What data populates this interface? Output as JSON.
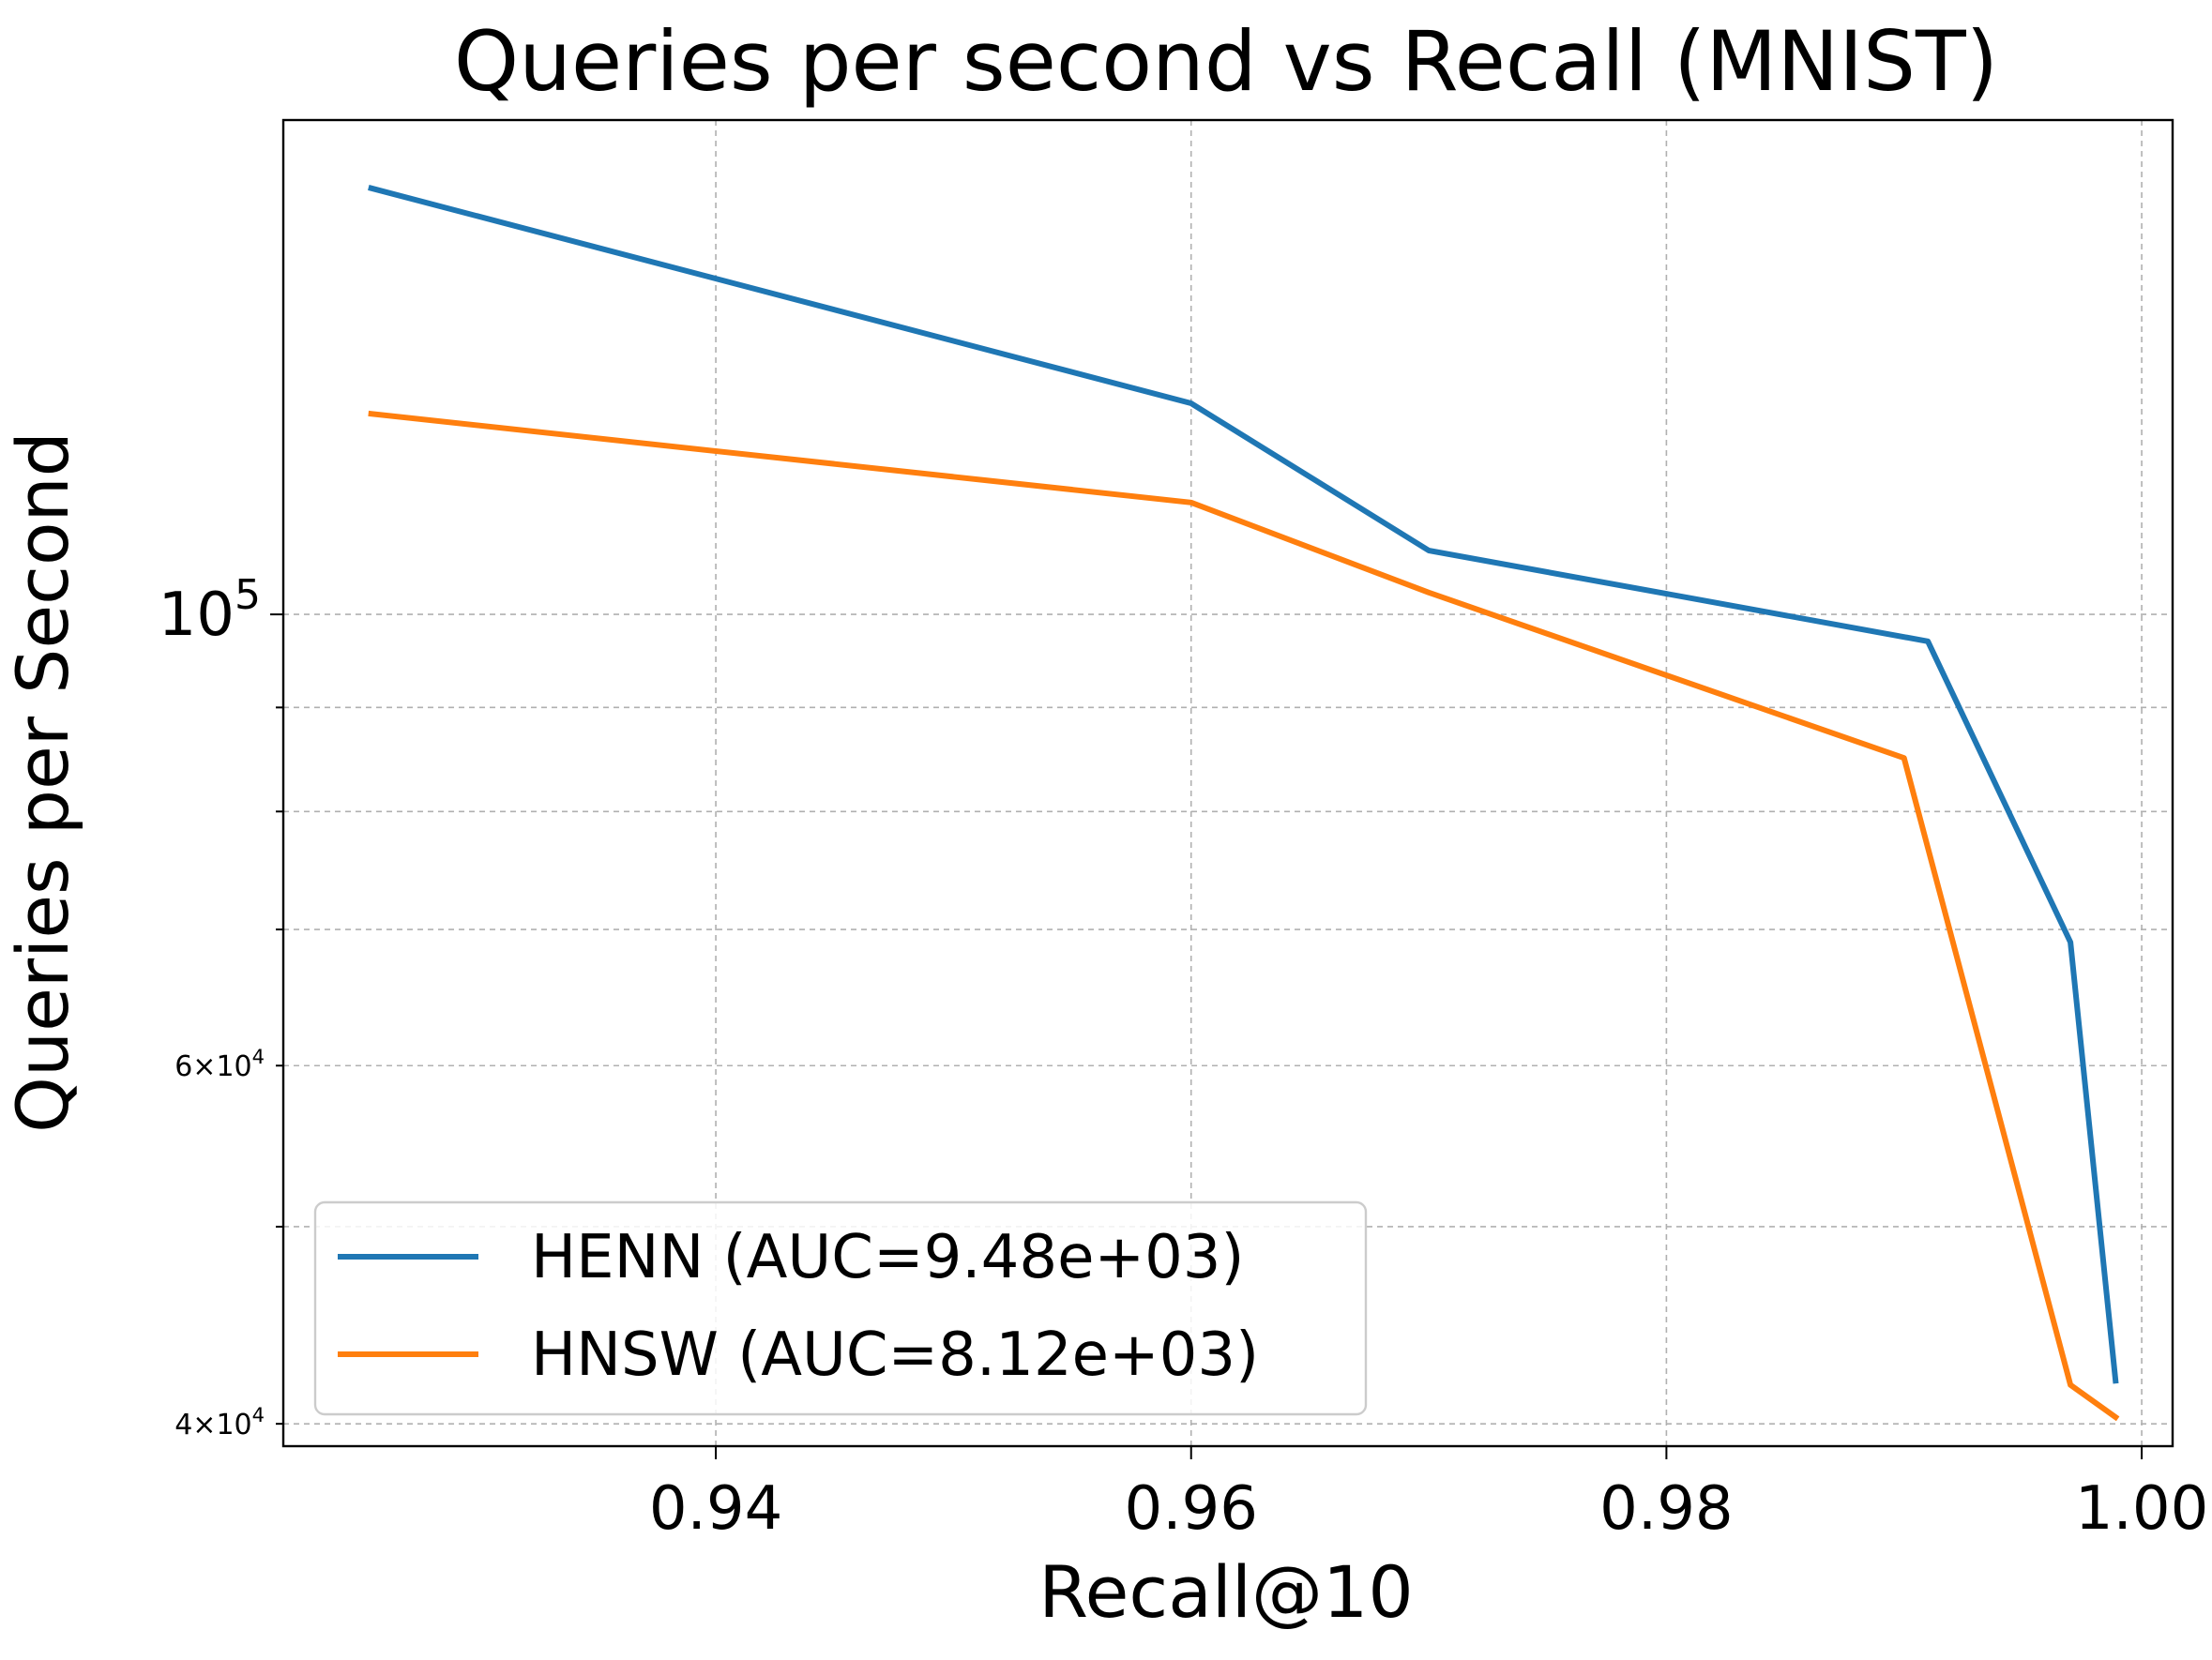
{
  "chart_data": {
    "type": "line",
    "title": "Queries per second vs Recall (MNIST)",
    "xlabel": "Recall@10",
    "ylabel": "Queries per Second",
    "x_scale": "linear",
    "y_scale": "log",
    "xlim": [
      0.9218,
      1.0013
    ],
    "ylim": [
      39000,
      175000
    ],
    "grid": true,
    "legend_placement": "lower-left",
    "x_ticks": [
      {
        "value": 0.94,
        "label": "0.94"
      },
      {
        "value": 0.96,
        "label": "0.96"
      },
      {
        "value": 0.98,
        "label": "0.98"
      },
      {
        "value": 1.0,
        "label": "1.00"
      }
    ],
    "y_major_ticks": [
      {
        "value": 100000,
        "base": "10",
        "exp": "5"
      }
    ],
    "y_minor_ticks": [
      {
        "value": 40000,
        "mantissa": "4",
        "base": "10",
        "exp": "4",
        "labeled": true
      },
      {
        "value": 50000,
        "labeled": false
      },
      {
        "value": 60000,
        "mantissa": "6",
        "base": "10",
        "exp": "4",
        "labeled": true
      },
      {
        "value": 70000,
        "labeled": false
      },
      {
        "value": 80000,
        "labeled": false
      },
      {
        "value": 90000,
        "labeled": false
      }
    ],
    "series": [
      {
        "name": "HENN (AUC=9.48e+03)",
        "color": "#1f77b4",
        "points": [
          [
            0.9255,
            162000
          ],
          [
            0.96,
            127000
          ],
          [
            0.97,
            107500
          ],
          [
            0.991,
            97000
          ],
          [
            0.997,
            69000
          ],
          [
            0.9989,
            42000
          ]
        ]
      },
      {
        "name": "HNSW (AUC=8.12e+03)",
        "color": "#ff7f0e",
        "points": [
          [
            0.9255,
            125500
          ],
          [
            0.96,
            113500
          ],
          [
            0.97,
            102500
          ],
          [
            0.99,
            85000
          ],
          [
            0.997,
            41800
          ],
          [
            0.9989,
            40300
          ]
        ]
      }
    ]
  }
}
